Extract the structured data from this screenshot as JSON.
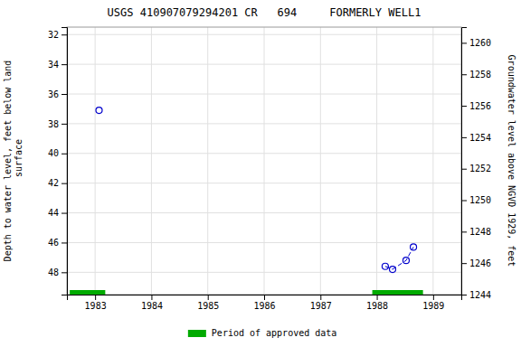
{
  "chart_data": {
    "type": "scatter",
    "title": "USGS 410907079294201 CR   694     FORMERLY WELL1",
    "ylabel": "Depth to water level, feet below land\n surface",
    "y2label": "Groundwater level above NGVD 1929, feet",
    "xlim": [
      1982.5,
      1989.5
    ],
    "xticks": [
      1983,
      1984,
      1985,
      1986,
      1987,
      1988,
      1989
    ],
    "ylim": [
      49.5,
      31.5
    ],
    "yticks": [
      32,
      34,
      36,
      38,
      40,
      42,
      44,
      46,
      48
    ],
    "y2lim": [
      1244,
      1261
    ],
    "y2ticks": [
      1244,
      1246,
      1248,
      1250,
      1252,
      1254,
      1256,
      1258,
      1260
    ],
    "grid": true,
    "legend": "bottom",
    "series": [
      {
        "type": "scatter",
        "marker": "circle",
        "color": "#0000cc",
        "x": [
          1983.07,
          1988.15,
          1988.28,
          1988.52,
          1988.65
        ],
        "values": [
          37.1,
          47.6,
          47.8,
          47.2,
          46.3
        ]
      },
      {
        "type": "line",
        "line_style": "dashed",
        "color": "#0000cc",
        "x": [
          1988.15,
          1988.28,
          1988.52,
          1988.65
        ],
        "values": [
          47.6,
          47.8,
          47.2,
          46.3
        ]
      },
      {
        "type": "span",
        "name": "Period of approved data",
        "color": "#00aa00",
        "x_start": [
          1982.55,
          1987.92
        ],
        "x_end": [
          1983.18,
          1988.82
        ]
      }
    ]
  }
}
